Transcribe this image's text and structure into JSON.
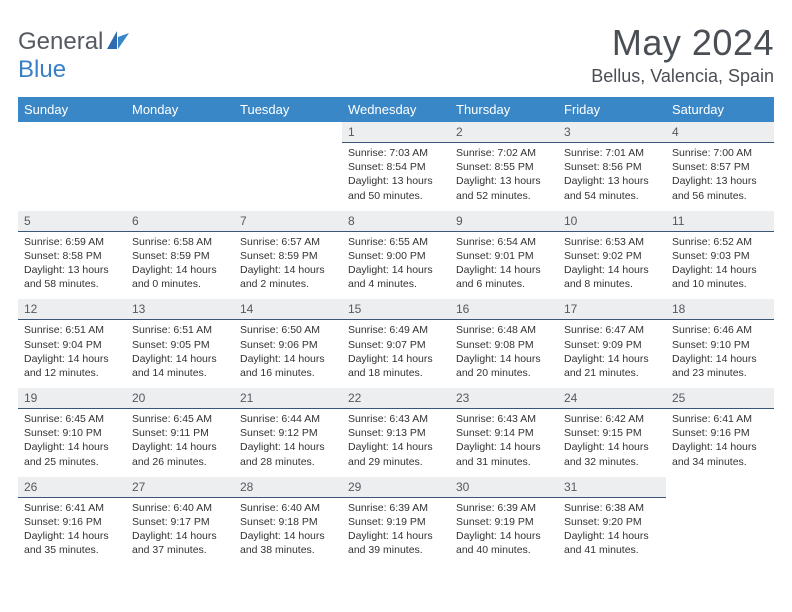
{
  "logo": {
    "word1": "General",
    "word2": "Blue",
    "color_gray": "#555a60",
    "color_blue": "#3a7fc4"
  },
  "title": "May 2024",
  "location": "Bellus, Valencia, Spain",
  "weekdays": [
    "Sunday",
    "Monday",
    "Tuesday",
    "Wednesday",
    "Thursday",
    "Friday",
    "Saturday"
  ],
  "header_bg": "#3a87c7",
  "header_fg": "#ffffff",
  "daynum_bg": "#eceef0",
  "daynum_border": "#3a557a",
  "weeks": [
    [
      null,
      null,
      null,
      {
        "n": "1",
        "sr": "7:03 AM",
        "ss": "8:54 PM",
        "dl": "13 hours and 50 minutes."
      },
      {
        "n": "2",
        "sr": "7:02 AM",
        "ss": "8:55 PM",
        "dl": "13 hours and 52 minutes."
      },
      {
        "n": "3",
        "sr": "7:01 AM",
        "ss": "8:56 PM",
        "dl": "13 hours and 54 minutes."
      },
      {
        "n": "4",
        "sr": "7:00 AM",
        "ss": "8:57 PM",
        "dl": "13 hours and 56 minutes."
      }
    ],
    [
      {
        "n": "5",
        "sr": "6:59 AM",
        "ss": "8:58 PM",
        "dl": "13 hours and 58 minutes."
      },
      {
        "n": "6",
        "sr": "6:58 AM",
        "ss": "8:59 PM",
        "dl": "14 hours and 0 minutes."
      },
      {
        "n": "7",
        "sr": "6:57 AM",
        "ss": "8:59 PM",
        "dl": "14 hours and 2 minutes."
      },
      {
        "n": "8",
        "sr": "6:55 AM",
        "ss": "9:00 PM",
        "dl": "14 hours and 4 minutes."
      },
      {
        "n": "9",
        "sr": "6:54 AM",
        "ss": "9:01 PM",
        "dl": "14 hours and 6 minutes."
      },
      {
        "n": "10",
        "sr": "6:53 AM",
        "ss": "9:02 PM",
        "dl": "14 hours and 8 minutes."
      },
      {
        "n": "11",
        "sr": "6:52 AM",
        "ss": "9:03 PM",
        "dl": "14 hours and 10 minutes."
      }
    ],
    [
      {
        "n": "12",
        "sr": "6:51 AM",
        "ss": "9:04 PM",
        "dl": "14 hours and 12 minutes."
      },
      {
        "n": "13",
        "sr": "6:51 AM",
        "ss": "9:05 PM",
        "dl": "14 hours and 14 minutes."
      },
      {
        "n": "14",
        "sr": "6:50 AM",
        "ss": "9:06 PM",
        "dl": "14 hours and 16 minutes."
      },
      {
        "n": "15",
        "sr": "6:49 AM",
        "ss": "9:07 PM",
        "dl": "14 hours and 18 minutes."
      },
      {
        "n": "16",
        "sr": "6:48 AM",
        "ss": "9:08 PM",
        "dl": "14 hours and 20 minutes."
      },
      {
        "n": "17",
        "sr": "6:47 AM",
        "ss": "9:09 PM",
        "dl": "14 hours and 21 minutes."
      },
      {
        "n": "18",
        "sr": "6:46 AM",
        "ss": "9:10 PM",
        "dl": "14 hours and 23 minutes."
      }
    ],
    [
      {
        "n": "19",
        "sr": "6:45 AM",
        "ss": "9:10 PM",
        "dl": "14 hours and 25 minutes."
      },
      {
        "n": "20",
        "sr": "6:45 AM",
        "ss": "9:11 PM",
        "dl": "14 hours and 26 minutes."
      },
      {
        "n": "21",
        "sr": "6:44 AM",
        "ss": "9:12 PM",
        "dl": "14 hours and 28 minutes."
      },
      {
        "n": "22",
        "sr": "6:43 AM",
        "ss": "9:13 PM",
        "dl": "14 hours and 29 minutes."
      },
      {
        "n": "23",
        "sr": "6:43 AM",
        "ss": "9:14 PM",
        "dl": "14 hours and 31 minutes."
      },
      {
        "n": "24",
        "sr": "6:42 AM",
        "ss": "9:15 PM",
        "dl": "14 hours and 32 minutes."
      },
      {
        "n": "25",
        "sr": "6:41 AM",
        "ss": "9:16 PM",
        "dl": "14 hours and 34 minutes."
      }
    ],
    [
      {
        "n": "26",
        "sr": "6:41 AM",
        "ss": "9:16 PM",
        "dl": "14 hours and 35 minutes."
      },
      {
        "n": "27",
        "sr": "6:40 AM",
        "ss": "9:17 PM",
        "dl": "14 hours and 37 minutes."
      },
      {
        "n": "28",
        "sr": "6:40 AM",
        "ss": "9:18 PM",
        "dl": "14 hours and 38 minutes."
      },
      {
        "n": "29",
        "sr": "6:39 AM",
        "ss": "9:19 PM",
        "dl": "14 hours and 39 minutes."
      },
      {
        "n": "30",
        "sr": "6:39 AM",
        "ss": "9:19 PM",
        "dl": "14 hours and 40 minutes."
      },
      {
        "n": "31",
        "sr": "6:38 AM",
        "ss": "9:20 PM",
        "dl": "14 hours and 41 minutes."
      },
      null
    ]
  ],
  "labels": {
    "sunrise": "Sunrise:",
    "sunset": "Sunset:",
    "daylight": "Daylight:"
  }
}
